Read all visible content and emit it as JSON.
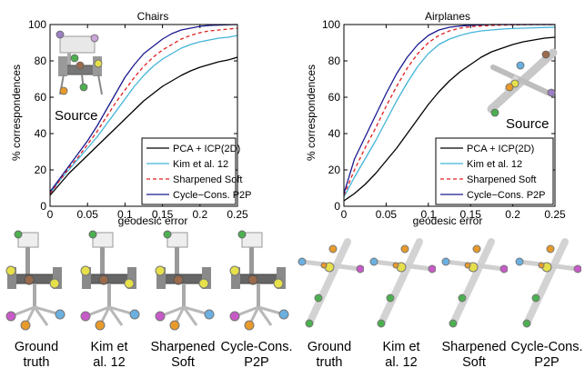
{
  "chart_data": [
    {
      "type": "line",
      "title": "Chairs",
      "xlabel": "geodesic error",
      "ylabel": "% correspondences",
      "xlim": [
        0,
        0.25
      ],
      "ylim": [
        0,
        100
      ],
      "xticks": [
        "0",
        "0.05",
        "0.1",
        "0.15",
        "0.2",
        "0.25"
      ],
      "yticks": [
        "0",
        "20",
        "40",
        "60",
        "80",
        "100"
      ],
      "grid": false,
      "legend_position": "bottom-right",
      "inset_label": "Source",
      "x": [
        0,
        0.0125,
        0.025,
        0.0375,
        0.05,
        0.0625,
        0.075,
        0.0875,
        0.1,
        0.1125,
        0.125,
        0.1375,
        0.15,
        0.1625,
        0.175,
        0.1875,
        0.2,
        0.2125,
        0.225,
        0.2375,
        0.25
      ],
      "series": [
        {
          "name": "PCA + ICP(2D)",
          "color": "#000000",
          "dash": "solid",
          "values": [
            6,
            12,
            18,
            23,
            28,
            33,
            38,
            43,
            48,
            53,
            58,
            62,
            66,
            69,
            72,
            74.5,
            76.5,
            78,
            79.5,
            80.5,
            82
          ]
        },
        {
          "name": "Kim et al. 12",
          "color": "#43b4d8",
          "dash": "solid",
          "values": [
            7,
            14,
            20,
            26,
            32,
            38,
            45,
            52,
            59,
            66,
            72,
            77,
            81,
            84,
            87,
            89,
            90.5,
            91.5,
            92.5,
            93,
            94
          ]
        },
        {
          "name": "Sharpened Soft",
          "color": "#e02020",
          "dash": "dashed",
          "values": [
            7,
            14,
            21,
            27,
            34,
            41,
            49,
            57,
            64,
            71,
            77,
            82,
            86,
            89,
            92,
            94,
            95.5,
            96.5,
            97,
            97.5,
            98
          ]
        },
        {
          "name": "Cycle−Cons. P2P",
          "color": "#1a1a8e",
          "dash": "solid",
          "values": [
            8,
            15,
            22,
            29,
            36,
            44,
            53,
            62,
            71,
            78,
            84,
            88,
            92,
            95,
            97,
            98,
            99,
            99.5,
            99.7,
            99.9,
            100
          ]
        }
      ]
    },
    {
      "type": "line",
      "title": "Airplanes",
      "xlabel": "geodesic error",
      "ylabel": "% correspondences",
      "xlim": [
        0,
        0.25
      ],
      "ylim": [
        0,
        100
      ],
      "xticks": [
        "0",
        "0.05",
        "0.1",
        "0.15",
        "0.2",
        "0.25"
      ],
      "yticks": [
        "0",
        "20",
        "40",
        "60",
        "80",
        "100"
      ],
      "grid": false,
      "legend_position": "bottom-right",
      "inset_label": "Source",
      "x": [
        0,
        0.0125,
        0.025,
        0.0375,
        0.05,
        0.0625,
        0.075,
        0.0875,
        0.1,
        0.1125,
        0.125,
        0.1375,
        0.15,
        0.1625,
        0.175,
        0.1875,
        0.2,
        0.2125,
        0.225,
        0.2375,
        0.25
      ],
      "series": [
        {
          "name": "PCA + ICP(2D)",
          "color": "#000000",
          "dash": "solid",
          "values": [
            3,
            7,
            12,
            18,
            25,
            32,
            40,
            48,
            56,
            63,
            69,
            74,
            78,
            82,
            85,
            87,
            89,
            90.5,
            91.5,
            92.5,
            93
          ]
        },
        {
          "name": "Kim et al. 12",
          "color": "#43b4d8",
          "dash": "solid",
          "values": [
            5,
            16,
            26,
            36,
            47,
            58,
            68,
            77,
            84,
            89,
            92,
            94,
            95.5,
            96.5,
            97,
            97.5,
            97.8,
            98,
            98.2,
            98.4,
            98.5
          ]
        },
        {
          "name": "Sharpened Soft",
          "color": "#e02020",
          "dash": "dashed",
          "values": [
            6,
            20,
            32,
            43,
            55,
            66,
            76,
            84,
            90,
            94,
            96.5,
            98,
            98.8,
            99.2,
            99.5,
            99.7,
            99.8,
            99.9,
            100,
            100,
            100
          ]
        },
        {
          "name": "Cycle−Cons. P2P",
          "color": "#1a1a8e",
          "dash": "solid",
          "values": [
            7,
            26,
            38,
            50,
            62,
            73,
            82,
            89,
            94,
            97,
            98.5,
            99.2,
            99.6,
            99.8,
            100,
            100,
            100,
            100,
            100,
            100,
            100
          ]
        }
      ]
    }
  ],
  "thumbnails": {
    "captions": [
      {
        "line1": "Ground",
        "line2": "truth"
      },
      {
        "line1": "Kim et",
        "line2": "al. 12"
      },
      {
        "line1": "Sharpened",
        "line2": "Soft"
      },
      {
        "line1": "Cycle-Cons.",
        "line2": "P2P"
      },
      {
        "line1": "Ground",
        "line2": "truth"
      },
      {
        "line1": "Kim et",
        "line2": "al. 12"
      },
      {
        "line1": "Sharpened",
        "line2": "Soft"
      },
      {
        "line1": "Cycle-Cons.",
        "line2": "P2P"
      }
    ],
    "point_colors": [
      "#9b7fc4",
      "#4caf50",
      "#e89a2a",
      "#9a6b4d",
      "#e6e04a",
      "#6ab0e0",
      "#c9a5d8"
    ]
  }
}
